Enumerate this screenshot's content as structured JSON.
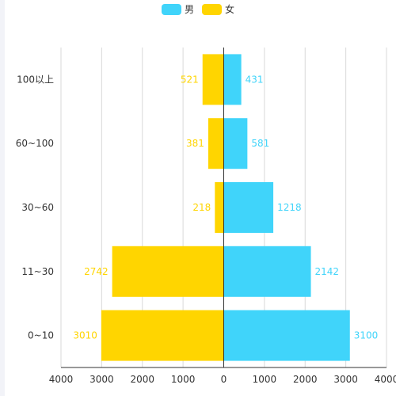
{
  "chart_data": {
    "type": "bar",
    "orientation": "horizontal",
    "categories": [
      "0~10",
      "11~30",
      "30~60",
      "60~100",
      "100以上"
    ],
    "series": [
      {
        "name": "男",
        "values": [
          3100,
          2142,
          1218,
          581,
          431
        ],
        "color": "#40d4fa",
        "direction": "positive"
      },
      {
        "name": "女",
        "values": [
          3010,
          2742,
          218,
          381,
          521
        ],
        "color": "#ffd500",
        "direction": "negative"
      }
    ],
    "x_ticks": [
      "4000",
      "3000",
      "2000",
      "1000",
      "0",
      "1000",
      "2000",
      "3000",
      "4000"
    ],
    "xlim": [
      -4000,
      4000
    ],
    "grid": true,
    "legend_position": "top-center"
  }
}
